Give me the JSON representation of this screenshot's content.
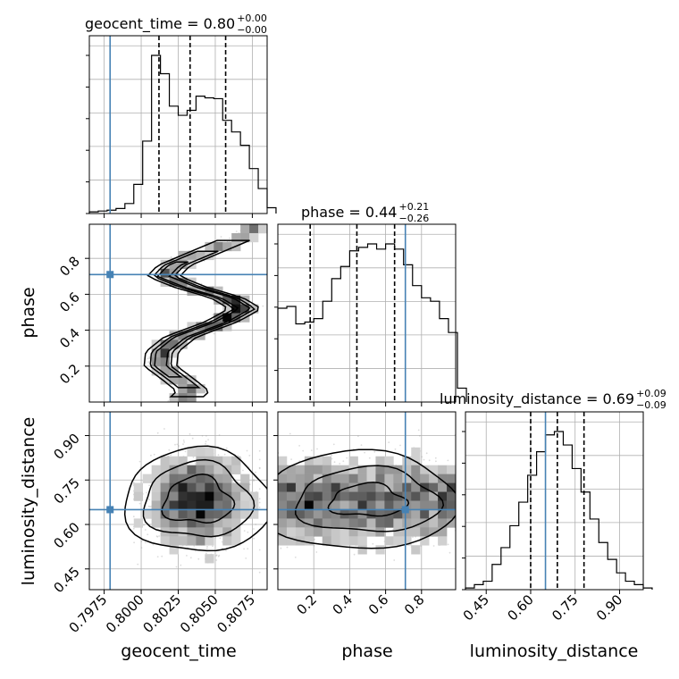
{
  "colors": {
    "truth": "#4682b4",
    "hist": "#000000",
    "grid": "#b0b0b0",
    "background": "#ffffff"
  },
  "chart_data": {
    "type": "corner",
    "parameters": [
      "geocent_time",
      "phase",
      "luminosity_distance"
    ],
    "titles": [
      {
        "parameter": "geocent_time",
        "text": "geocent_time = 0.80",
        "sup": "+0.00",
        "sub": "−0.00"
      },
      {
        "parameter": "phase",
        "text": "phase = 0.44",
        "sup": "+0.21",
        "sub": "−0.26"
      },
      {
        "parameter": "luminosity_distance",
        "text": "luminosity_distance = 0.69",
        "sup": "+0.09",
        "sub": "−0.09"
      }
    ],
    "axis_labels": {
      "geocent_time": "geocent_time",
      "phase": "phase",
      "luminosity_distance": "luminosity_distance"
    },
    "ranges": {
      "geocent_time": [
        0.7965,
        0.8085
      ],
      "phase": [
        0.0,
        0.99
      ],
      "luminosity_distance": [
        0.38,
        0.98
      ]
    },
    "ticks": {
      "geocent_time": {
        "values": [
          0.7975,
          0.8,
          0.8025,
          0.805,
          0.8075
        ],
        "labels": [
          "0.7975",
          "0.8000",
          "0.8025",
          "0.8050",
          "0.8075"
        ]
      },
      "phase": {
        "values": [
          0.2,
          0.4,
          0.6,
          0.8
        ],
        "labels": [
          "0.2",
          "0.4",
          "0.6",
          "0.8"
        ]
      },
      "luminosity_distance": {
        "values": [
          0.45,
          0.6,
          0.75,
          0.9
        ],
        "labels": [
          "0.45",
          "0.60",
          "0.75",
          "0.90"
        ]
      }
    },
    "truths": {
      "geocent_time": 0.7979,
      "phase": 0.71,
      "luminosity_distance": 0.65
    },
    "quantiles": {
      "geocent_time": [
        0.8012,
        0.8033,
        0.8057
      ],
      "phase": [
        0.18,
        0.44,
        0.65
      ],
      "luminosity_distance": [
        0.6,
        0.69,
        0.78
      ]
    },
    "histograms": {
      "geocent_time": {
        "bin_start": 0.7965,
        "bin_width": 0.0006,
        "counts": [
          2,
          3,
          4,
          6,
          12,
          35,
          87,
          190,
          168,
          129,
          118,
          124,
          141,
          139,
          138,
          112,
          98,
          82,
          54,
          30,
          7
        ]
      },
      "phase": {
        "bin_start": 0.0,
        "bin_width": 0.05,
        "counts": [
          54,
          55,
          45,
          46,
          48,
          58,
          71,
          78,
          87,
          89,
          91,
          88,
          91,
          88,
          79,
          67,
          60,
          58,
          48,
          40,
          8
        ]
      },
      "luminosity_distance": {
        "bin_start": 0.38,
        "bin_width": 0.03,
        "counts": [
          1,
          3,
          5,
          15,
          25,
          38,
          52,
          68,
          82,
          92,
          94,
          86,
          72,
          58,
          42,
          28,
          18,
          10,
          5,
          3,
          1
        ]
      }
    },
    "grid": true
  }
}
